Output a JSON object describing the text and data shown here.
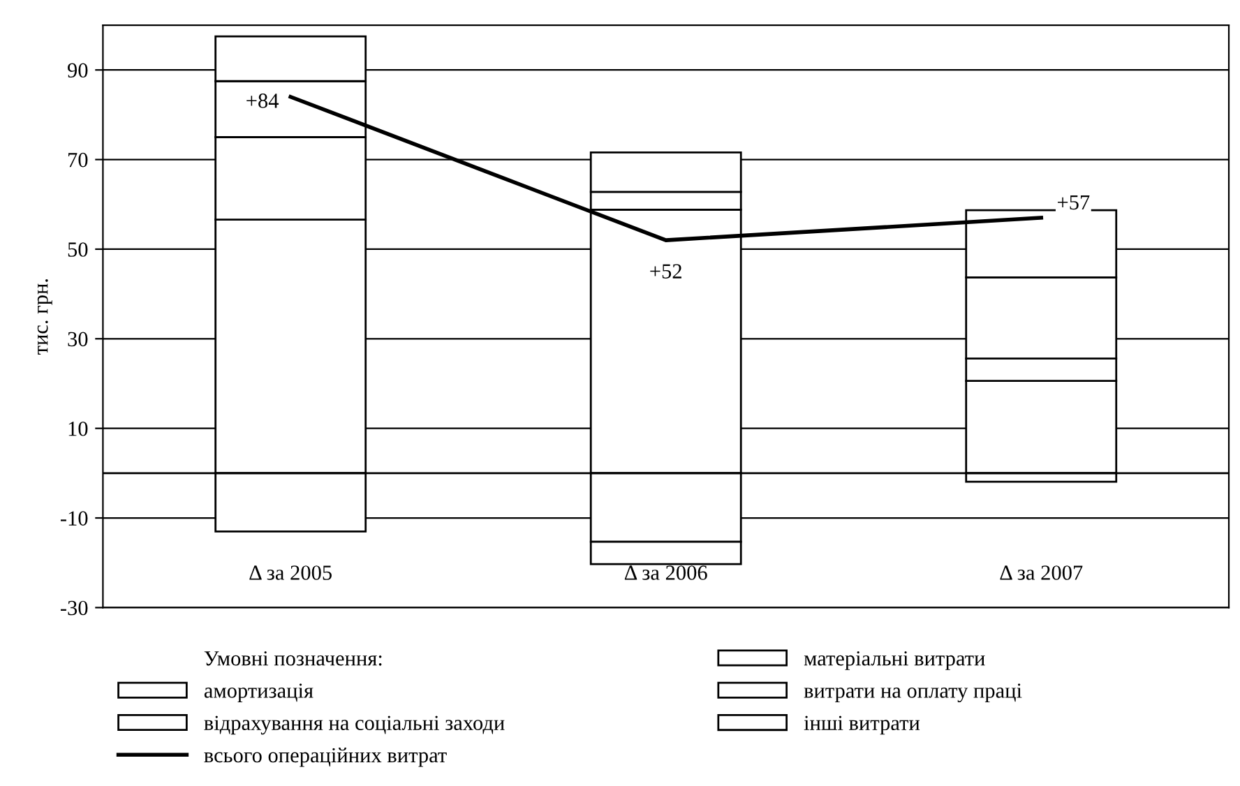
{
  "chart_data": {
    "type": "bar",
    "stacked": true,
    "ylabel": "тис. грн.",
    "legend_title": "Умовні позначення:",
    "categories": [
      "Δ за 2005",
      "Δ за 2006",
      "Δ за 2007"
    ],
    "series": [
      {
        "name": "матеріальні витрати",
        "color": "#ffffff",
        "values": [
          56.6,
          58.8,
          20.6
        ]
      },
      {
        "name": "амортизація",
        "color": "#ffffff",
        "values": [
          18.4,
          4,
          5
        ]
      },
      {
        "name": "витрати на оплату праці",
        "color": "#ffffff",
        "values": [
          12.5,
          8.8,
          18.1
        ]
      },
      {
        "name": "відрахування на соціальні заходи",
        "color": "#ffffff",
        "values": [
          10,
          -15.3,
          15
        ]
      },
      {
        "name": "інші витрати",
        "color": "#ffffff",
        "values": [
          -13,
          -5,
          -1.9
        ]
      },
      {
        "name": "всього операційних витрат",
        "type": "line",
        "color": "#000000",
        "values": [
          84,
          52,
          57
        ],
        "value_labels": [
          "+84",
          "+52",
          "+57"
        ]
      }
    ],
    "ylim": [
      -30,
      100
    ],
    "yticks": [
      -30,
      -10,
      10,
      30,
      50,
      70,
      90
    ],
    "grid": "y",
    "legend": "bottom"
  }
}
